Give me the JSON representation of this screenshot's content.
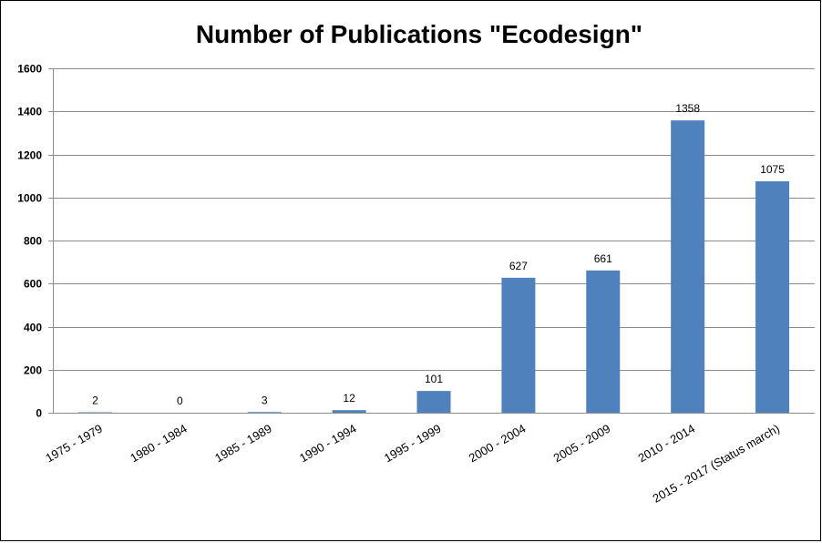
{
  "chart_data": {
    "type": "bar",
    "title": "Number of Publications \"Ecodesign\"",
    "xlabel": "",
    "ylabel": "",
    "ylim": [
      0,
      1600
    ],
    "yticks": [
      0,
      200,
      400,
      600,
      800,
      1000,
      1200,
      1400,
      1600
    ],
    "grid": true,
    "legend": "none",
    "categories": [
      "1975 - 1979",
      "1980 - 1984",
      "1985 - 1989",
      "1990 - 1994",
      "1995 - 1999",
      "2000 - 2004",
      "2005 - 2009",
      "2010 - 2014",
      "2015 - 2017 (Status march)"
    ],
    "values": [
      2,
      0,
      3,
      12,
      101,
      627,
      661,
      1358,
      1075
    ],
    "bar_color": "#4f81bd"
  }
}
